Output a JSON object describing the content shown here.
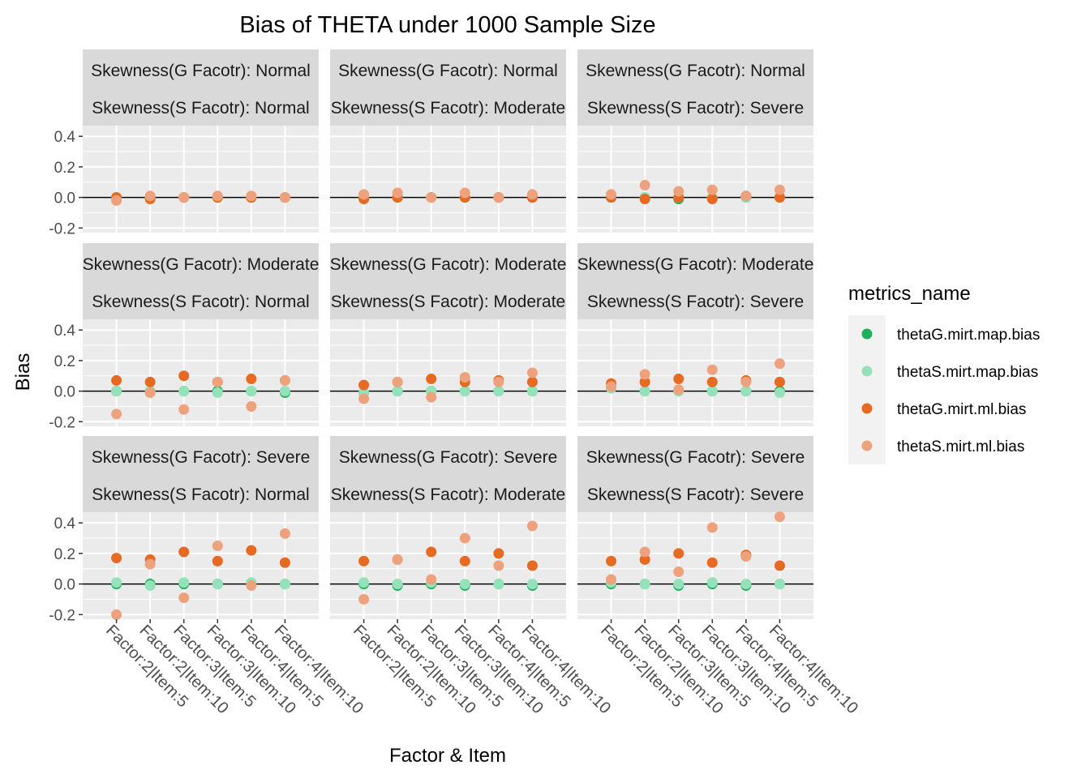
{
  "chart_data": {
    "type": "scatter",
    "title": "Bias of THETA under 1000 Sample Size",
    "xlabel": "Factor & Item",
    "ylabel": "Bias",
    "categories": [
      "Factor:2|Item:5",
      "Factor:2|Item:10",
      "Factor:3|Item:5",
      "Factor:3|Item:10",
      "Factor:4|Item:5",
      "Factor:4|Item:10"
    ],
    "ylim": [
      -0.23,
      0.47
    ],
    "yticks": [
      -0.2,
      0.0,
      0.2,
      0.4
    ],
    "ytick_labels": [
      "-0.2",
      "0.0",
      "0.2",
      "0.4"
    ],
    "grid": true,
    "reference_line_y": 0,
    "legend": {
      "title": "metrics_name",
      "position": "right",
      "entries": [
        "thetaG.mirt.map.bias",
        "thetaS.mirt.map.bias",
        "thetaG.mirt.ml.bias",
        "thetaS.mirt.ml.bias"
      ]
    },
    "colors": {
      "thetaG.mirt.map.bias": "#1db05a",
      "thetaS.mirt.map.bias": "#93e2b9",
      "thetaG.mirt.ml.bias": "#e66a22",
      "thetaS.mirt.ml.bias": "#eda27d"
    },
    "panels": [
      {
        "strip_g": "Skewness(G Facotr): Normal",
        "strip_s": "Skewness(S Facotr): Normal",
        "series": {
          "thetaG.mirt.map.bias": [
            0.0,
            0.0,
            0.0,
            0.0,
            0.0,
            0.0
          ],
          "thetaS.mirt.map.bias": [
            0.0,
            0.0,
            0.0,
            0.0,
            0.0,
            0.0
          ],
          "thetaG.mirt.ml.bias": [
            0.0,
            -0.01,
            0.0,
            0.0,
            0.0,
            0.0
          ],
          "thetaS.mirt.ml.bias": [
            -0.02,
            0.01,
            0.0,
            0.01,
            0.01,
            0.0
          ]
        }
      },
      {
        "strip_g": "Skewness(G Facotr): Normal",
        "strip_s": "Skewness(S Facotr): Moderate",
        "series": {
          "thetaG.mirt.map.bias": [
            0.0,
            0.0,
            0.0,
            0.0,
            0.0,
            0.0
          ],
          "thetaS.mirt.map.bias": [
            0.0,
            0.0,
            0.0,
            0.0,
            0.0,
            0.0
          ],
          "thetaG.mirt.ml.bias": [
            -0.01,
            0.0,
            0.0,
            0.0,
            0.0,
            0.0
          ],
          "thetaS.mirt.ml.bias": [
            0.02,
            0.03,
            0.0,
            0.03,
            0.0,
            0.02
          ]
        }
      },
      {
        "strip_g": "Skewness(G Facotr): Normal",
        "strip_s": "Skewness(S Facotr): Severe",
        "series": {
          "thetaG.mirt.map.bias": [
            0.0,
            0.0,
            -0.01,
            0.0,
            0.0,
            0.0
          ],
          "thetaS.mirt.map.bias": [
            0.0,
            0.0,
            0.0,
            0.0,
            0.0,
            0.0
          ],
          "thetaG.mirt.ml.bias": [
            0.0,
            -0.01,
            0.0,
            -0.01,
            0.01,
            0.0
          ],
          "thetaS.mirt.ml.bias": [
            0.02,
            0.08,
            0.04,
            0.05,
            0.01,
            0.05
          ]
        }
      },
      {
        "strip_g": "Skewness(G Facotr): Moderate",
        "strip_s": "Skewness(S Facotr): Normal",
        "series": {
          "thetaG.mirt.map.bias": [
            0.0,
            0.0,
            0.0,
            0.0,
            0.0,
            -0.01
          ],
          "thetaS.mirt.map.bias": [
            0.0,
            0.0,
            0.0,
            -0.01,
            0.0,
            0.0
          ],
          "thetaG.mirt.ml.bias": [
            0.07,
            0.06,
            0.1,
            0.06,
            0.08,
            0.07
          ],
          "thetaS.mirt.ml.bias": [
            -0.15,
            -0.01,
            -0.12,
            0.06,
            -0.1,
            0.07
          ]
        }
      },
      {
        "strip_g": "Skewness(G Facotr): Moderate",
        "strip_s": "Skewness(S Facotr): Moderate",
        "series": {
          "thetaG.mirt.map.bias": [
            -0.01,
            0.0,
            0.0,
            0.0,
            0.0,
            0.0
          ],
          "thetaS.mirt.map.bias": [
            -0.01,
            0.0,
            0.0,
            0.0,
            0.0,
            0.0
          ],
          "thetaG.mirt.ml.bias": [
            0.04,
            0.06,
            0.08,
            0.06,
            0.07,
            0.06
          ],
          "thetaS.mirt.ml.bias": [
            -0.05,
            0.06,
            -0.04,
            0.09,
            0.06,
            0.12
          ]
        }
      },
      {
        "strip_g": "Skewness(G Facotr): Moderate",
        "strip_s": "Skewness(S Facotr): Severe",
        "series": {
          "thetaG.mirt.map.bias": [
            0.02,
            0.0,
            0.0,
            0.0,
            0.0,
            0.0
          ],
          "thetaS.mirt.map.bias": [
            0.02,
            0.0,
            0.0,
            0.0,
            0.0,
            -0.01
          ],
          "thetaG.mirt.ml.bias": [
            0.05,
            0.06,
            0.08,
            0.06,
            0.07,
            0.06
          ],
          "thetaS.mirt.ml.bias": [
            0.03,
            0.11,
            0.01,
            0.14,
            0.06,
            0.18
          ]
        }
      },
      {
        "strip_g": "Skewness(G Facotr): Severe",
        "strip_s": "Skewness(S Facotr): Normal",
        "series": {
          "thetaG.mirt.map.bias": [
            0.0,
            0.0,
            0.0,
            0.0,
            0.0,
            0.0
          ],
          "thetaS.mirt.map.bias": [
            0.01,
            -0.01,
            0.01,
            0.0,
            0.01,
            0.0
          ],
          "thetaG.mirt.ml.bias": [
            0.17,
            0.16,
            0.21,
            0.15,
            0.22,
            0.14
          ],
          "thetaS.mirt.ml.bias": [
            -0.2,
            0.13,
            -0.09,
            0.25,
            -0.01,
            0.33
          ]
        }
      },
      {
        "strip_g": "Skewness(G Facotr): Severe",
        "strip_s": "Skewness(S Facotr): Moderate",
        "series": {
          "thetaG.mirt.map.bias": [
            0.0,
            -0.01,
            0.0,
            -0.01,
            0.0,
            -0.01
          ],
          "thetaS.mirt.map.bias": [
            0.01,
            0.0,
            0.01,
            0.0,
            0.0,
            0.0
          ],
          "thetaG.mirt.ml.bias": [
            0.15,
            0.16,
            0.21,
            0.15,
            0.2,
            0.12
          ],
          "thetaS.mirt.ml.bias": [
            -0.1,
            0.16,
            0.03,
            0.3,
            0.12,
            0.38
          ]
        }
      },
      {
        "strip_g": "Skewness(G Facotr): Severe",
        "strip_s": "Skewness(S Facotr): Severe",
        "series": {
          "thetaG.mirt.map.bias": [
            0.0,
            0.0,
            -0.01,
            0.0,
            -0.01,
            0.0
          ],
          "thetaS.mirt.map.bias": [
            0.01,
            0.0,
            0.0,
            0.01,
            0.0,
            0.0
          ],
          "thetaG.mirt.ml.bias": [
            0.15,
            0.16,
            0.2,
            0.14,
            0.19,
            0.12
          ],
          "thetaS.mirt.ml.bias": [
            0.03,
            0.21,
            0.08,
            0.37,
            0.18,
            0.44
          ]
        }
      }
    ]
  }
}
